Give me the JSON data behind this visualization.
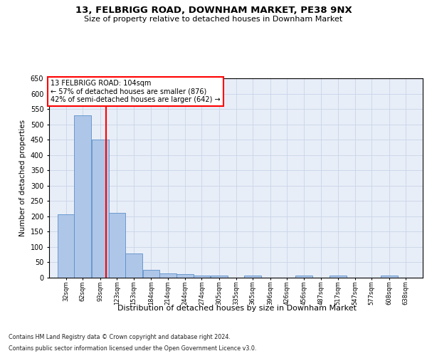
{
  "title1": "13, FELBRIGG ROAD, DOWNHAM MARKET, PE38 9NX",
  "title2": "Size of property relative to detached houses in Downham Market",
  "xlabel": "Distribution of detached houses by size in Downham Market",
  "ylabel": "Number of detached properties",
  "footnote1": "Contains HM Land Registry data © Crown copyright and database right 2024.",
  "footnote2": "Contains public sector information licensed under the Open Government Licence v3.0.",
  "categories": [
    "32sqm",
    "62sqm",
    "93sqm",
    "123sqm",
    "153sqm",
    "184sqm",
    "214sqm",
    "244sqm",
    "274sqm",
    "305sqm",
    "335sqm",
    "365sqm",
    "396sqm",
    "426sqm",
    "456sqm",
    "487sqm",
    "517sqm",
    "547sqm",
    "577sqm",
    "608sqm",
    "638sqm"
  ],
  "bin_centers": [
    32,
    62,
    93,
    123,
    153,
    184,
    214,
    244,
    274,
    305,
    335,
    365,
    396,
    426,
    456,
    487,
    517,
    547,
    577,
    608,
    638
  ],
  "values": [
    207,
    530,
    450,
    211,
    78,
    25,
    15,
    11,
    8,
    8,
    0,
    8,
    0,
    0,
    6,
    0,
    6,
    0,
    0,
    6,
    0
  ],
  "bar_color": "#aec6e8",
  "bar_edge_color": "#5b8fc9",
  "grid_color": "#c8d4e8",
  "bg_color": "#e8eef8",
  "property_line_x": 104,
  "property_line_color": "red",
  "annotation_line1": "13 FELBRIGG ROAD: 104sqm",
  "annotation_line2": "← 57% of detached houses are smaller (876)",
  "annotation_line3": "42% of semi-detached houses are larger (642) →",
  "ylim_max": 650,
  "bin_width": 30,
  "yticks": [
    0,
    50,
    100,
    150,
    200,
    250,
    300,
    350,
    400,
    450,
    500,
    550,
    600,
    650
  ]
}
